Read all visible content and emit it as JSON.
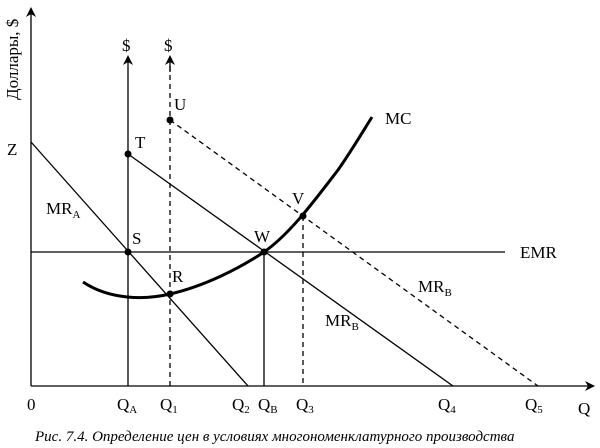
{
  "axes": {
    "y_label": "Доллары, $",
    "x_label": "Q",
    "origin": "0",
    "dollar_1": "$",
    "dollar_2": "$"
  },
  "curves": {
    "mc": "MC",
    "emr": "EMR",
    "mra_main": "MR",
    "mra_sub": "A",
    "mrb1_main": "MR",
    "mrb1_sub": "B",
    "mrb2_main": "MR",
    "mrb2_sub": "B"
  },
  "points": {
    "z": "Z",
    "u": "U",
    "t": "T",
    "v": "V",
    "s": "S",
    "w": "W",
    "r": "R"
  },
  "ticks": [
    {
      "main": "Q",
      "sub": "A"
    },
    {
      "main": "Q",
      "sub": "1"
    },
    {
      "main": "Q",
      "sub": "2"
    },
    {
      "main": "Q",
      "sub": "B"
    },
    {
      "main": "Q",
      "sub": "3"
    },
    {
      "main": "Q",
      "sub": "4"
    },
    {
      "main": "Q",
      "sub": "5"
    }
  ],
  "caption": "Рис. 7.4. Определение цен в условиях многономенклатурного производства"
}
